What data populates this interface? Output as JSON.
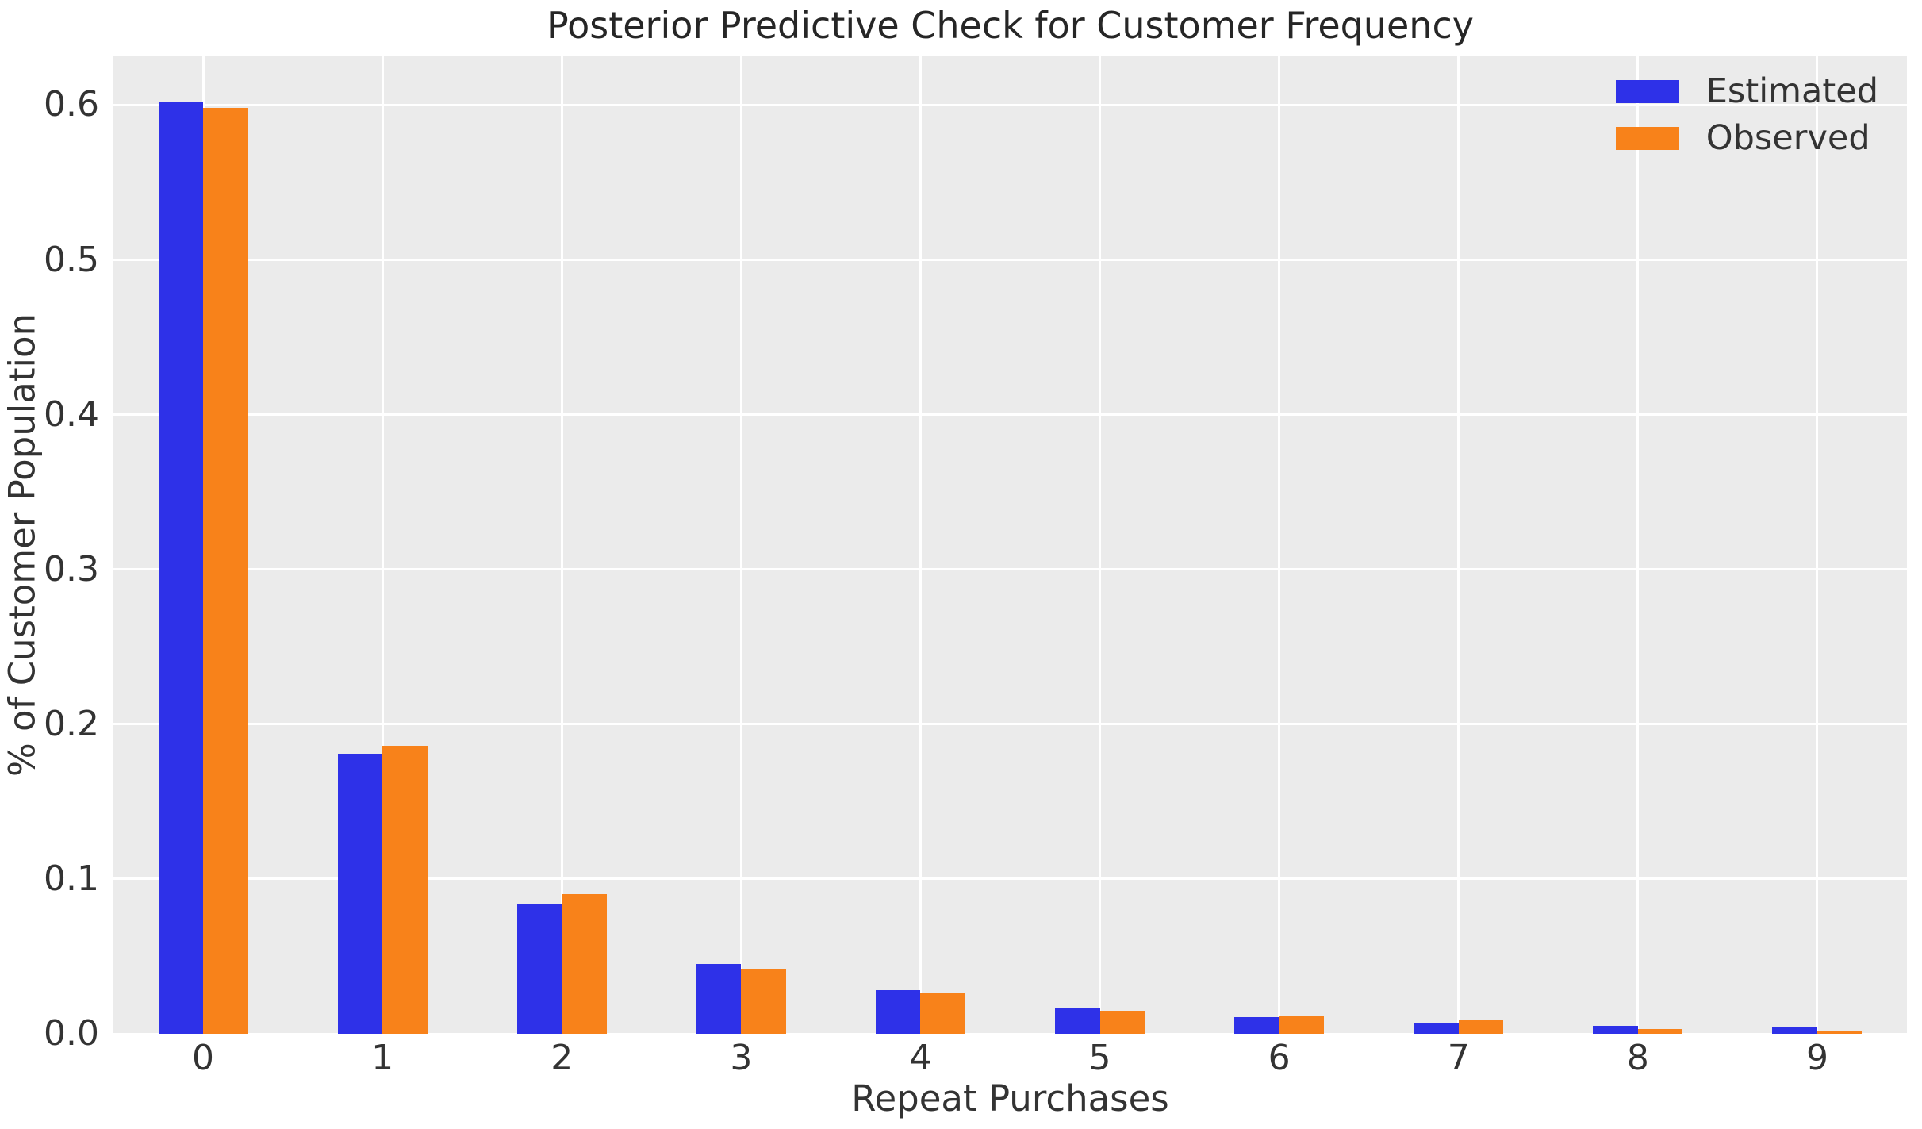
{
  "title": "Posterior Predictive Check for Customer Frequency",
  "xlabel": "Repeat Purchases",
  "ylabel": "% of Customer Population",
  "chart_data": {
    "type": "bar",
    "title": "Posterior Predictive Check for Customer Frequency",
    "xlabel": "Repeat Purchases",
    "ylabel": "% of Customer Population",
    "categories": [
      "0",
      "1",
      "2",
      "3",
      "4",
      "5",
      "6",
      "7",
      "8",
      "9"
    ],
    "series": [
      {
        "name": "Estimated",
        "color": "#2e31e8",
        "values": [
          0.602,
          0.181,
          0.084,
          0.045,
          0.028,
          0.017,
          0.011,
          0.007,
          0.005,
          0.004
        ]
      },
      {
        "name": "Observed",
        "color": "#f8821a",
        "values": [
          0.598,
          0.186,
          0.09,
          0.042,
          0.026,
          0.015,
          0.012,
          0.009,
          0.003,
          0.002
        ]
      }
    ],
    "yticks": [
      0.0,
      0.1,
      0.2,
      0.3,
      0.4,
      0.5,
      0.6
    ],
    "ytick_labels": [
      "0.0",
      "0.1",
      "0.2",
      "0.3",
      "0.4",
      "0.5",
      "0.6"
    ],
    "ylim": [
      0,
      0.632
    ],
    "grid": true,
    "legend_position": "upper right",
    "style": {
      "axes_background": "#ebebeb",
      "grid_color": "#ffffff",
      "text_color": "#333333",
      "figure_background": "#ffffff"
    }
  }
}
